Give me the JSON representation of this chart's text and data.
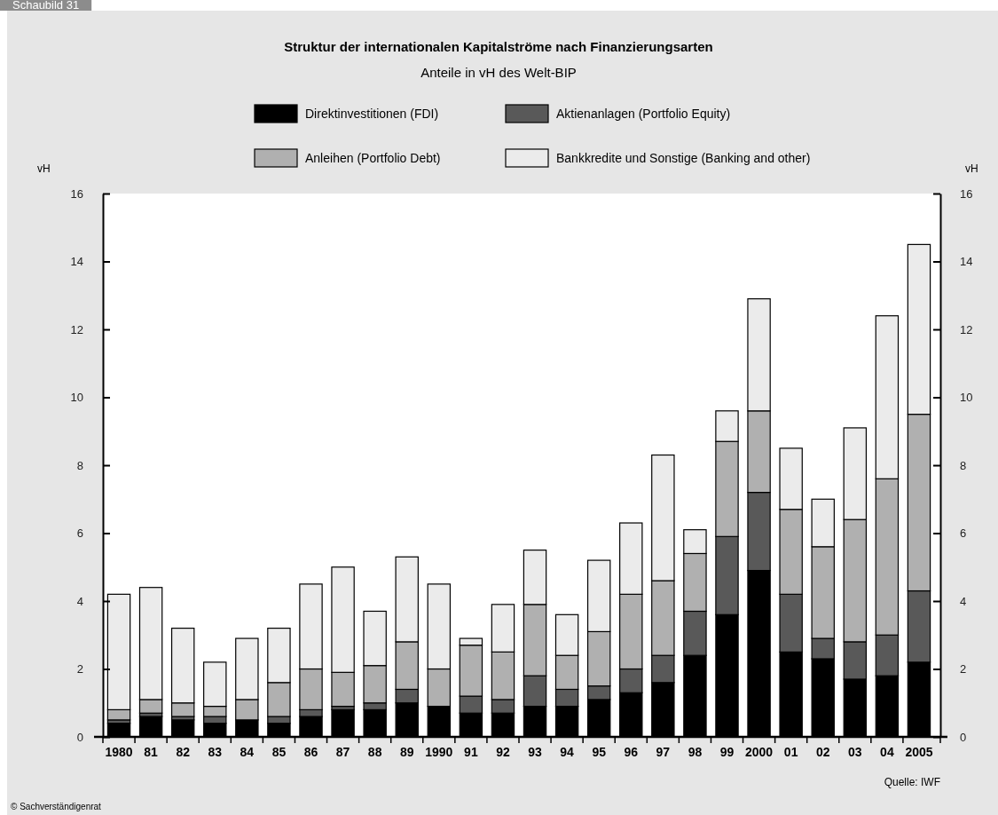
{
  "chart_data": {
    "type": "bar",
    "stacked": true,
    "title": "Struktur der internationalen Kapitalströme nach Finanzierungsarten",
    "subtitle": "Anteile in vH des Welt-BIP",
    "ylabel": "vH",
    "y2label": "vH",
    "categories": [
      "1980",
      "81",
      "82",
      "83",
      "84",
      "85",
      "86",
      "87",
      "88",
      "89",
      "1990",
      "91",
      "92",
      "93",
      "94",
      "95",
      "96",
      "97",
      "98",
      "99",
      "2000",
      "01",
      "02",
      "03",
      "04",
      "2005"
    ],
    "series": [
      {
        "name": "Direktinvestitionen (FDI)",
        "color": "#000000",
        "values": [
          0.4,
          0.6,
          0.5,
          0.4,
          0.5,
          0.4,
          0.6,
          0.8,
          0.8,
          1.0,
          0.9,
          0.7,
          0.7,
          0.9,
          0.9,
          1.1,
          1.3,
          1.6,
          2.4,
          3.6,
          4.9,
          2.5,
          2.3,
          1.7,
          1.8,
          2.2
        ]
      },
      {
        "name": "Aktienanlagen (Portfolio Equity)",
        "color": "#595959",
        "values": [
          0.1,
          0.1,
          0.1,
          0.2,
          0,
          0.2,
          0.2,
          0.1,
          0.2,
          0.4,
          0,
          0.5,
          0.4,
          0.9,
          0.5,
          0.4,
          0.7,
          0.8,
          1.3,
          2.3,
          2.3,
          1.7,
          0.6,
          1.1,
          1.2,
          2.1
        ]
      },
      {
        "name": "Anleihen (Portfolio Debt)",
        "color": "#b0b0b0",
        "values": [
          0.3,
          0.4,
          0.4,
          0.3,
          0.6,
          1.0,
          1.2,
          1.0,
          1.1,
          1.4,
          1.1,
          1.5,
          1.4,
          2.1,
          1.0,
          1.6,
          2.2,
          2.2,
          1.7,
          2.8,
          2.4,
          2.5,
          2.7,
          3.6,
          4.6,
          5.2
        ]
      },
      {
        "name": "Bankkredite und Sonstige (Banking and other)",
        "color": "#ebebeb",
        "values": [
          3.4,
          3.3,
          2.2,
          1.3,
          1.8,
          1.6,
          2.5,
          3.1,
          1.6,
          2.5,
          2.5,
          0.2,
          1.4,
          1.6,
          1.2,
          2.1,
          2.1,
          3.7,
          0.7,
          0.9,
          3.3,
          1.8,
          1.4,
          2.7,
          4.8,
          5.0
        ]
      }
    ],
    "ylim": [
      0,
      16
    ],
    "yticks": [
      0,
      2,
      4,
      6,
      8,
      10,
      12,
      14,
      16
    ],
    "y2lim": [
      0,
      16
    ],
    "y2ticks": [
      0,
      2,
      4,
      6,
      8,
      10,
      12,
      14,
      16
    ],
    "legend": "top",
    "annotations": [
      "Schaubild 31",
      "Quelle: IWF",
      "© Sachverständigenrat"
    ]
  }
}
